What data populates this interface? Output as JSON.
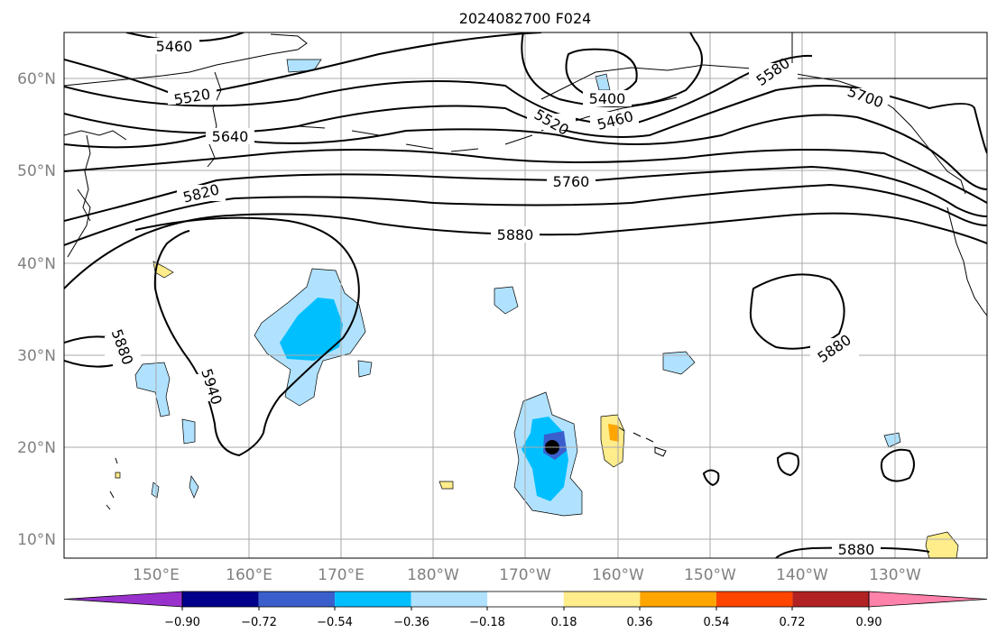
{
  "title": "2024082700 F024",
  "map": {
    "lat_labels": [
      "60°N",
      "50°N",
      "40°N",
      "30°N",
      "20°N",
      "10°N"
    ],
    "lon_labels": [
      "150°E",
      "160°E",
      "170°E",
      "180°W",
      "170°W",
      "160°W",
      "150°W",
      "140°W",
      "130°W"
    ],
    "contour_labels": [
      "5460",
      "5520",
      "5640",
      "5820",
      "5400",
      "5520",
      "5460",
      "5580",
      "5700",
      "5760",
      "5880",
      "5880",
      "5940",
      "5880",
      "5880"
    ],
    "line_color": "#000000",
    "grid_color": "#aaaaaa"
  },
  "colorbar": {
    "colors": [
      "#9932cc",
      "#00008b",
      "#3a5fcd",
      "#00bfff",
      "#b0e2ff",
      "#ffffff",
      "#ffec8b",
      "#ffa500",
      "#ff4500",
      "#b22222",
      "#ff82ab"
    ],
    "tick_labels": [
      "−0.90",
      "−0.72",
      "−0.54",
      "−0.36",
      "−0.18",
      "0.18",
      "0.36",
      "0.54",
      "0.72",
      "0.90"
    ]
  }
}
